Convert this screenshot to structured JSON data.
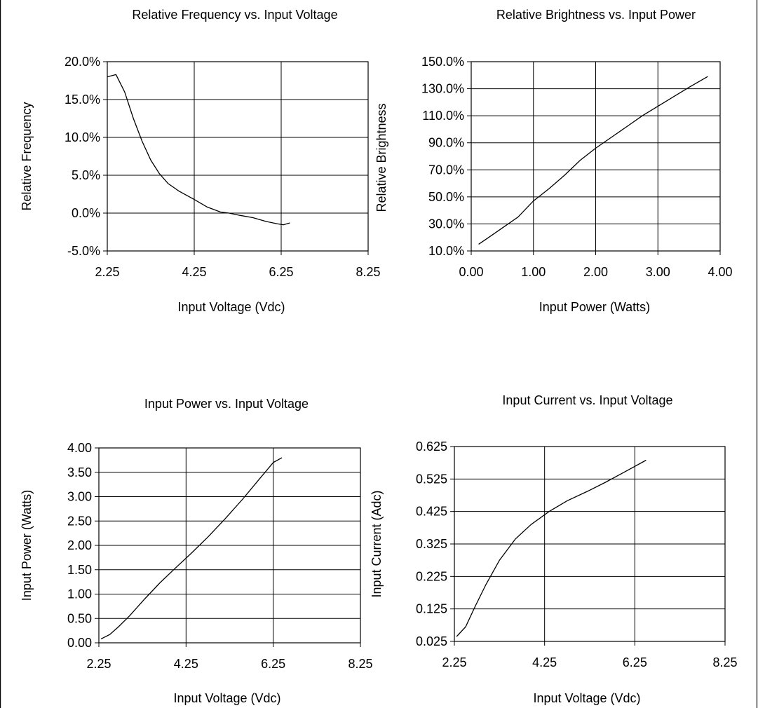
{
  "chart_data": [
    {
      "type": "line",
      "title": "Relative Frequency vs. Input Voltage",
      "xlabel": "Input Voltage (Vdc)",
      "ylabel": "Relative Frequency",
      "xlim": [
        2.25,
        8.25
      ],
      "ylim": [
        -5.0,
        20.0
      ],
      "x_ticks": [
        "2.25",
        "4.25",
        "6.25",
        "8.25"
      ],
      "x_tick_values": [
        2.25,
        4.25,
        6.25,
        8.25
      ],
      "y_ticks": [
        "-5.0%",
        "0.0%",
        "5.0%",
        "10.0%",
        "15.0%",
        "20.0%"
      ],
      "y_tick_values": [
        -5.0,
        0.0,
        5.0,
        10.0,
        15.0,
        20.0
      ],
      "grid": true,
      "x": [
        2.25,
        2.45,
        2.65,
        2.85,
        3.05,
        3.25,
        3.45,
        3.65,
        3.9,
        4.25,
        4.55,
        4.85,
        5.05,
        5.3,
        5.6,
        5.9,
        6.15,
        6.3,
        6.45
      ],
      "series": [
        {
          "values": [
            18.0,
            18.3,
            16.0,
            12.5,
            9.5,
            7.0,
            5.2,
            3.9,
            2.9,
            1.8,
            0.8,
            0.15,
            0.0,
            -0.3,
            -0.6,
            -1.1,
            -1.4,
            -1.55,
            -1.3
          ]
        }
      ]
    },
    {
      "type": "line",
      "title": "Relative Brightness vs. Input Power",
      "xlabel": "Input Power (Watts)",
      "ylabel": "Relative Brightness",
      "xlim": [
        0.0,
        4.0
      ],
      "ylim": [
        10.0,
        150.0
      ],
      "x_ticks": [
        "0.00",
        "1.00",
        "2.00",
        "3.00",
        "4.00"
      ],
      "x_tick_values": [
        0.0,
        1.0,
        2.0,
        3.0,
        4.0
      ],
      "y_ticks": [
        "10.0%",
        "30.0%",
        "50.0%",
        "70.0%",
        "90.0%",
        "110.0%",
        "130.0%",
        "150.0%"
      ],
      "y_tick_values": [
        10.0,
        30.0,
        50.0,
        70.0,
        90.0,
        110.0,
        130.0,
        150.0
      ],
      "grid": true,
      "x": [
        0.12,
        0.25,
        0.5,
        0.75,
        1.0,
        1.25,
        1.5,
        1.75,
        2.0,
        2.25,
        2.5,
        2.75,
        3.0,
        3.25,
        3.5,
        3.8
      ],
      "series": [
        {
          "values": [
            15.0,
            19.0,
            27.0,
            35.0,
            47.0,
            56.0,
            66.0,
            77.0,
            86.0,
            94.0,
            102.0,
            110.0,
            117.0,
            124.0,
            131.0,
            139.0
          ]
        }
      ]
    },
    {
      "type": "line",
      "title": "Input Power vs. Input Voltage",
      "xlabel": "Input Voltage (Vdc)",
      "ylabel": "Input Power (Watts)",
      "xlim": [
        2.25,
        8.25
      ],
      "ylim": [
        0.0,
        4.0
      ],
      "x_ticks": [
        "2.25",
        "4.25",
        "6.25",
        "8.25"
      ],
      "x_tick_values": [
        2.25,
        4.25,
        6.25,
        8.25
      ],
      "y_ticks": [
        "0.00",
        "0.50",
        "1.00",
        "1.50",
        "2.00",
        "2.50",
        "3.00",
        "3.50",
        "4.00"
      ],
      "y_tick_values": [
        0.0,
        0.5,
        1.0,
        1.5,
        2.0,
        2.5,
        3.0,
        3.5,
        4.0
      ],
      "grid": true,
      "x": [
        2.3,
        2.5,
        2.7,
        2.95,
        3.3,
        3.65,
        4.0,
        4.35,
        4.75,
        5.15,
        5.55,
        5.95,
        6.25,
        6.45
      ],
      "series": [
        {
          "values": [
            0.08,
            0.17,
            0.33,
            0.55,
            0.9,
            1.23,
            1.53,
            1.82,
            2.17,
            2.55,
            2.95,
            3.38,
            3.7,
            3.8
          ]
        }
      ]
    },
    {
      "type": "line",
      "title": "Input Current vs. Input Voltage",
      "xlabel": "Input Voltage (Vdc)",
      "ylabel": "Input Current (Adc)",
      "xlim": [
        2.25,
        8.25
      ],
      "ylim": [
        0.025,
        0.625
      ],
      "x_ticks": [
        "2.25",
        "4.25",
        "6.25",
        "8.25"
      ],
      "x_tick_values": [
        2.25,
        4.25,
        6.25,
        8.25
      ],
      "y_ticks": [
        "0.025",
        "0.125",
        "0.225",
        "0.325",
        "0.425",
        "0.525",
        "0.625"
      ],
      "y_tick_values": [
        0.025,
        0.125,
        0.225,
        0.325,
        0.425,
        0.525,
        0.625
      ],
      "grid": true,
      "x": [
        2.3,
        2.5,
        2.7,
        2.95,
        3.25,
        3.6,
        3.95,
        4.35,
        4.75,
        5.2,
        5.6,
        6.0,
        6.5
      ],
      "series": [
        {
          "values": [
            0.04,
            0.07,
            0.13,
            0.2,
            0.275,
            0.34,
            0.385,
            0.425,
            0.458,
            0.487,
            0.515,
            0.545,
            0.583
          ]
        }
      ]
    }
  ]
}
